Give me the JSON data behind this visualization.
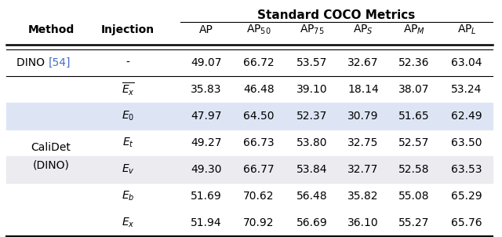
{
  "title": "Standard COCO Metrics",
  "bg_blue": "#dde5f5",
  "bg_gray": "#ebebf0",
  "bg_pink": "#fde8e8",
  "blue_ref": "#4472C4",
  "rows": [
    {
      "method": "DINO",
      "method2": "[54]",
      "injection": "-",
      "values": [
        "49.07",
        "66.72",
        "53.57",
        "32.67",
        "52.36",
        "63.04"
      ],
      "bg": null
    },
    {
      "method": "",
      "method2": "",
      "injection": "$\\overline{E_x}$",
      "values": [
        "35.83",
        "46.48",
        "39.10",
        "18.14",
        "38.07",
        "53.24"
      ],
      "bg": "blue"
    },
    {
      "method": "",
      "method2": "",
      "injection": "$E_0$",
      "values": [
        "47.97",
        "64.50",
        "52.37",
        "30.79",
        "51.65",
        "62.49"
      ],
      "bg": null
    },
    {
      "method": "CaliDet",
      "method2": "",
      "injection": "$E_t$",
      "values": [
        "49.27",
        "66.73",
        "53.80",
        "32.75",
        "52.57",
        "63.50"
      ],
      "bg": "gray"
    },
    {
      "method": "(DINO)",
      "method2": "",
      "injection": "$E_v$",
      "values": [
        "49.30",
        "66.77",
        "53.84",
        "32.77",
        "52.58",
        "63.53"
      ],
      "bg": null
    },
    {
      "method": "",
      "method2": "",
      "injection": "$E_b$",
      "values": [
        "51.69",
        "70.62",
        "56.48",
        "35.82",
        "55.08",
        "65.29"
      ],
      "bg": null
    },
    {
      "method": "",
      "method2": "",
      "injection": "$E_x$",
      "values": [
        "51.94",
        "70.92",
        "56.69",
        "36.10",
        "55.27",
        "65.76"
      ],
      "bg": "pink"
    }
  ]
}
